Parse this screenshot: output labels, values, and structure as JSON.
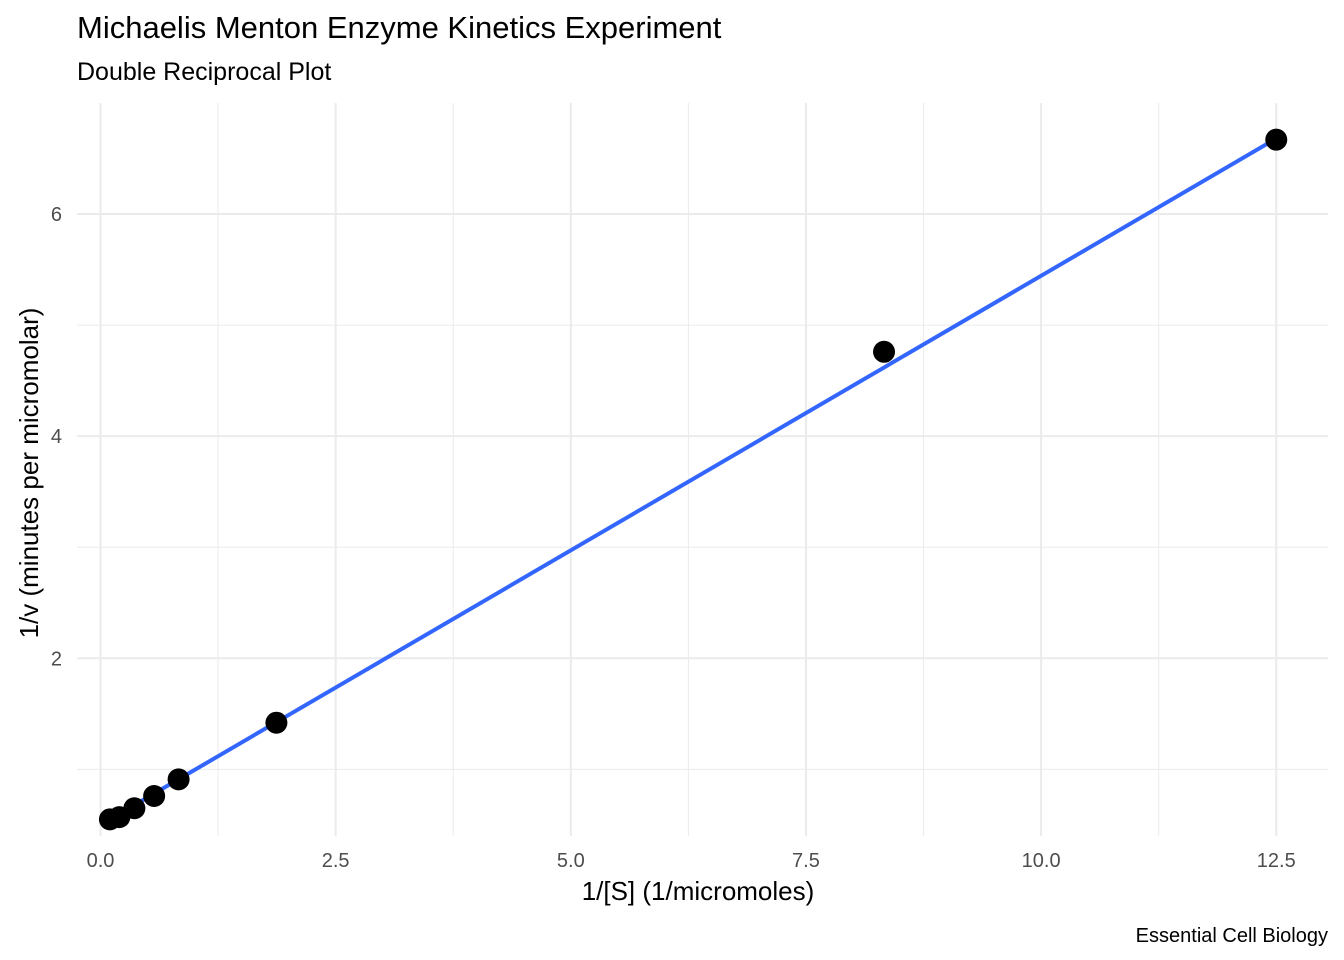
{
  "chart_data": {
    "type": "scatter",
    "title": "Michaelis Menton Enzyme Kinetics Experiment",
    "subtitle": "Double Reciprocal Plot",
    "caption": "Essential Cell Biology",
    "xlabel": "1/[S] (1/micromoles)",
    "ylabel": "1/v (minutes per micromolar)",
    "xlim": [
      -0.25,
      13.05
    ],
    "ylim": [
      0.4,
      7.0
    ],
    "x_ticks": [
      0.0,
      2.5,
      5.0,
      7.5,
      10.0,
      12.5
    ],
    "x_tick_labels": [
      "0.0",
      "2.5",
      "5.0",
      "7.5",
      "10.0",
      "12.5"
    ],
    "y_ticks": [
      2,
      4,
      6
    ],
    "y_tick_labels": [
      "2",
      "4",
      "6"
    ],
    "grid": true,
    "colors": {
      "points": "#000000",
      "fit_line": "#3366ff",
      "grid": "#ebebeb"
    },
    "series": [
      {
        "type": "scatter",
        "x": [
          0.1,
          0.2,
          0.36,
          0.57,
          0.83,
          1.87,
          8.33,
          12.5
        ],
        "y": [
          0.55,
          0.57,
          0.65,
          0.76,
          0.91,
          1.42,
          4.76,
          6.67
        ]
      },
      {
        "type": "line",
        "x": [
          0.1,
          12.5
        ],
        "y": [
          0.55,
          6.68
        ]
      }
    ]
  }
}
